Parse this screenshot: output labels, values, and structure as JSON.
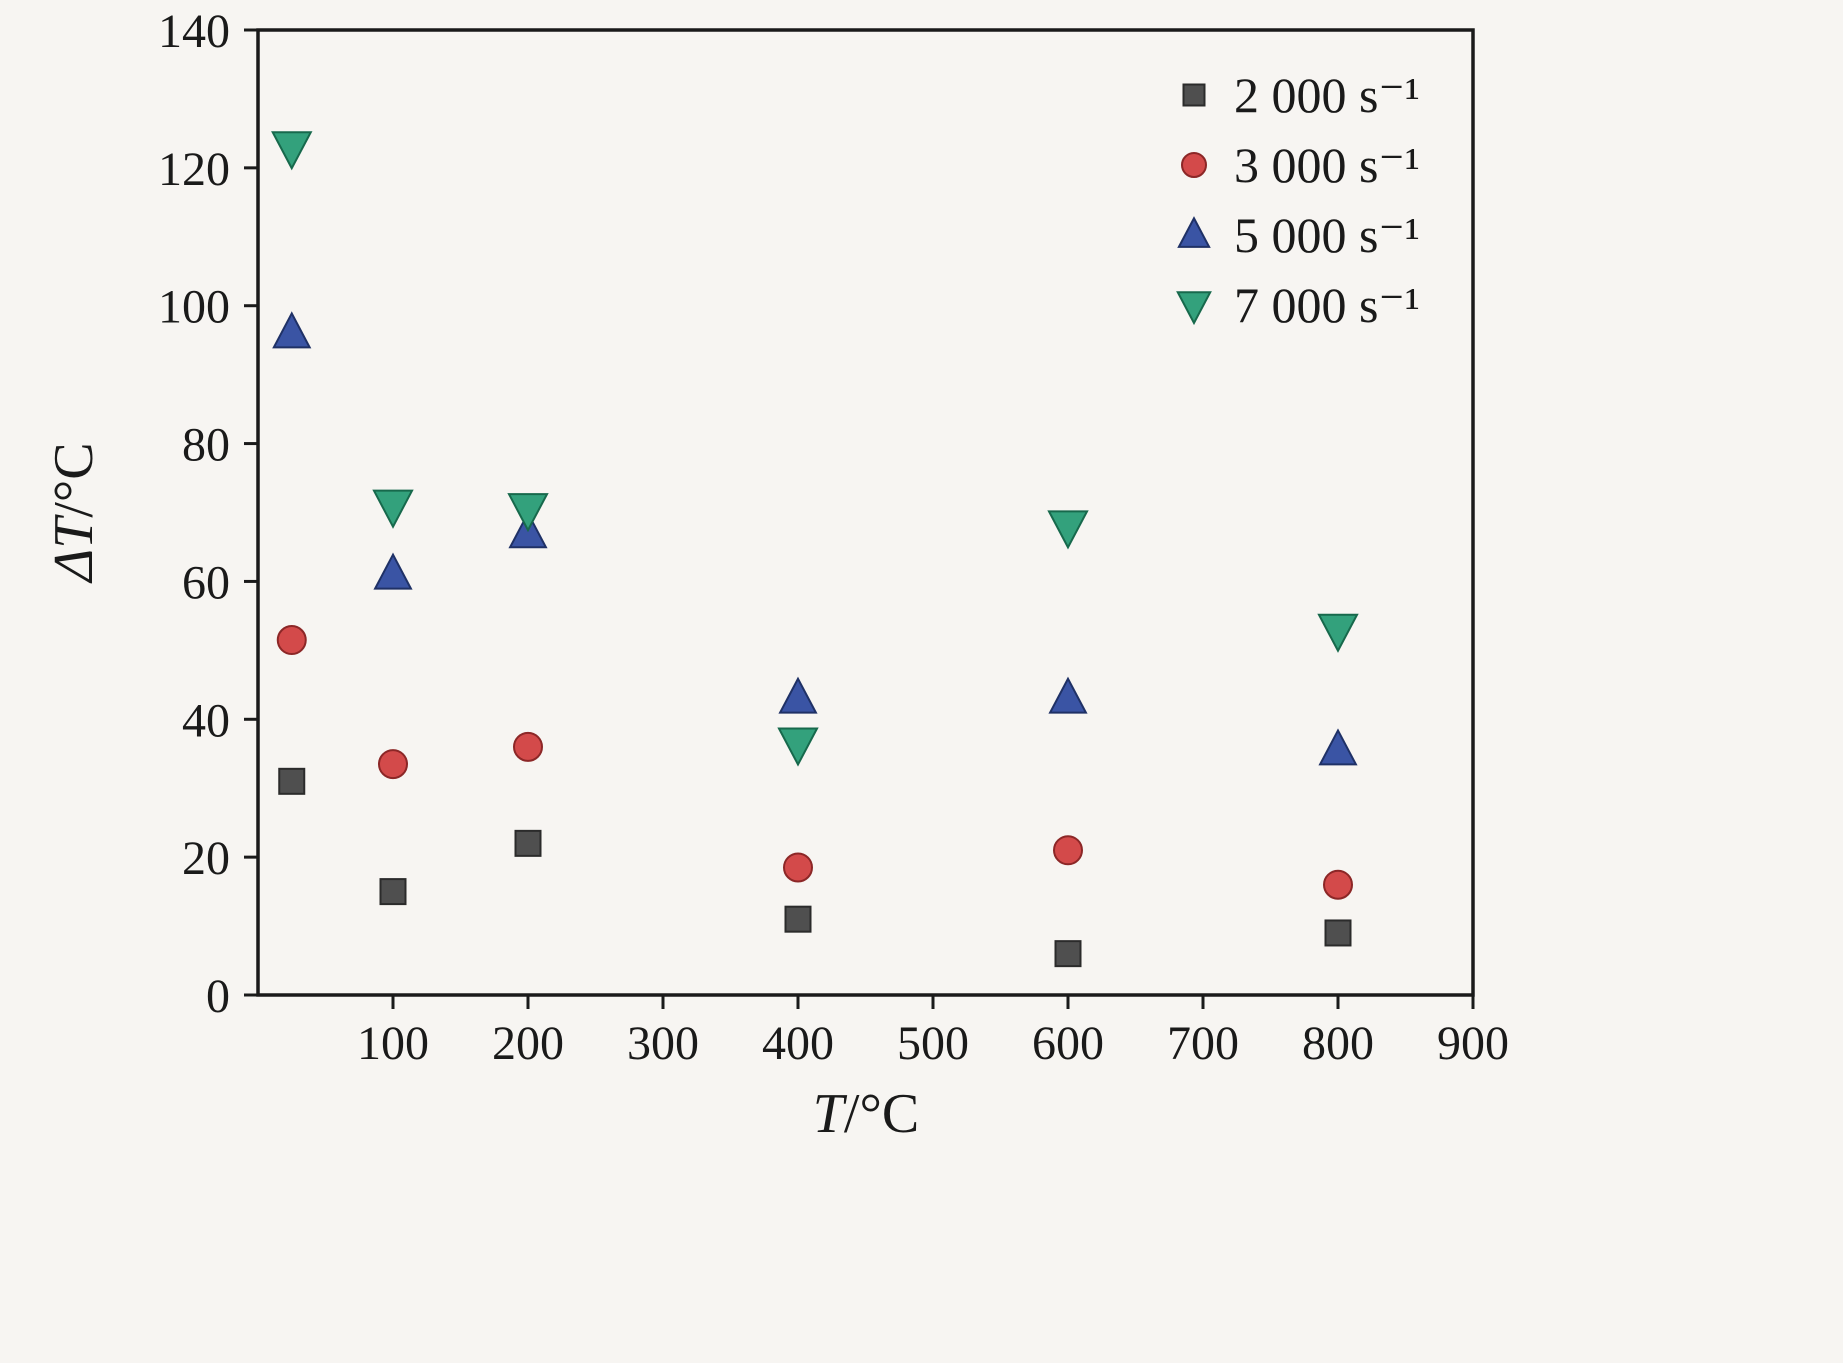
{
  "chart_data": {
    "type": "scatter",
    "title": "",
    "xlabel": "T/°C",
    "ylabel": "ΔT/°C",
    "xlabel_parts": [
      {
        "text": "T",
        "italic": true
      },
      {
        "text": "/°C",
        "italic": false
      }
    ],
    "ylabel_parts": [
      {
        "text": "ΔT",
        "italic": true
      },
      {
        "text": "/°C",
        "italic": false
      }
    ],
    "xlim": [
      0,
      900
    ],
    "ylim": [
      0,
      140
    ],
    "xticks": [
      100,
      200,
      300,
      400,
      500,
      600,
      700,
      800,
      900
    ],
    "yticks": [
      0,
      20,
      40,
      60,
      80,
      100,
      120,
      140
    ],
    "grid": false,
    "legend_position": "top-right",
    "axis_color": "#1a1a1a",
    "background_color": "#f7f5f2",
    "series": [
      {
        "name": "2 000 s⁻¹",
        "marker": "square",
        "color": "#4f4f4f",
        "edge": "#2b2b2b",
        "size": 25,
        "legend_size": 21,
        "x": [
          25,
          100,
          200,
          400,
          600,
          800
        ],
        "y": [
          31,
          15,
          22,
          11,
          6,
          9
        ]
      },
      {
        "name": "3 000 s⁻¹",
        "marker": "circle",
        "color": "#d34a4a",
        "edge": "#8c2727",
        "size": 28,
        "legend_size": 24,
        "x": [
          25,
          100,
          200,
          400,
          600,
          800
        ],
        "y": [
          51.5,
          33.5,
          36,
          18.5,
          21,
          16
        ]
      },
      {
        "name": "5 000 s⁻¹",
        "marker": "triangle-up",
        "color": "#3a54a4",
        "edge": "#1f3166",
        "size": 32,
        "legend_size": 27,
        "x": [
          25,
          100,
          200,
          400,
          600,
          800
        ],
        "y": [
          96,
          61,
          67,
          43,
          43,
          35.5
        ]
      },
      {
        "name": "7 000 s⁻¹",
        "marker": "triangle-down",
        "color": "#33a17c",
        "edge": "#17694c",
        "size": 34,
        "legend_size": 29,
        "x": [
          25,
          100,
          200,
          400,
          600,
          800
        ],
        "y": [
          123,
          71,
          70.5,
          36.5,
          68,
          53
        ]
      }
    ]
  }
}
